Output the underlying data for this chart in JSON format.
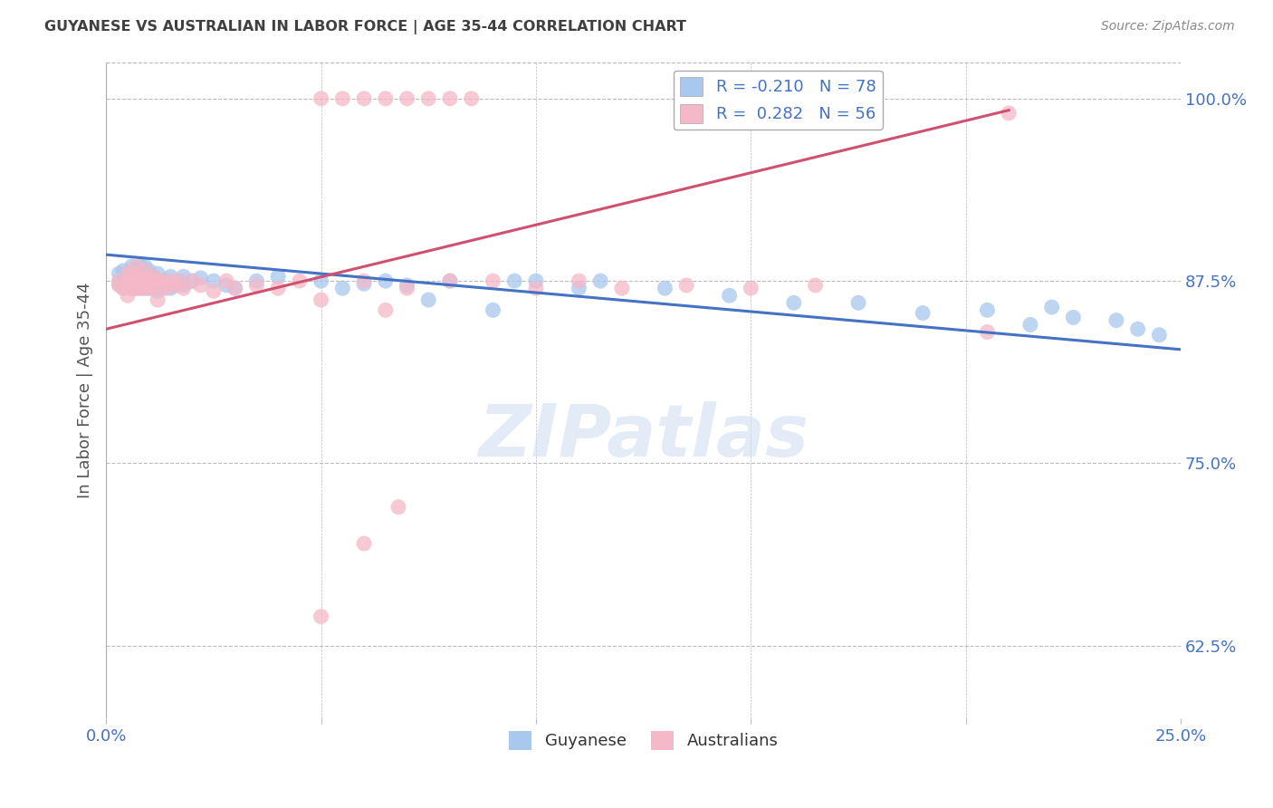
{
  "title": "GUYANESE VS AUSTRALIAN IN LABOR FORCE | AGE 35-44 CORRELATION CHART",
  "source_text": "Source: ZipAtlas.com",
  "ylabel_label": "In Labor Force | Age 35-44",
  "legend_label_guyanese": "Guyanese",
  "legend_label_australians": "Australians",
  "legend_blue_r": "-0.210",
  "legend_blue_n": "78",
  "legend_pink_r": "0.282",
  "legend_pink_n": "56",
  "blue_color": "#A8C8EE",
  "pink_color": "#F5B8C8",
  "blue_line_color": "#4472C4",
  "pink_line_color": "#D05070",
  "watermark_color": "#D0DEF0",
  "grid_color": "#BBBBBB",
  "title_color": "#404040",
  "axis_tick_color": "#4472C4",
  "xmin": 0.0,
  "xmax": 0.25,
  "ymin": 0.575,
  "ymax": 1.025,
  "blue_line_x0": 0.0,
  "blue_line_x1": 0.25,
  "blue_line_y0": 0.893,
  "blue_line_y1": 0.828,
  "pink_line_x0": 0.0,
  "pink_line_x1": 0.21,
  "pink_line_y0": 0.842,
  "pink_line_y1": 0.992,
  "blue_scatter_x": [
    0.003,
    0.003,
    0.004,
    0.004,
    0.004,
    0.005,
    0.005,
    0.005,
    0.006,
    0.006,
    0.006,
    0.006,
    0.006,
    0.007,
    0.007,
    0.007,
    0.007,
    0.007,
    0.008,
    0.008,
    0.008,
    0.008,
    0.008,
    0.009,
    0.009,
    0.009,
    0.009,
    0.01,
    0.01,
    0.01,
    0.01,
    0.01,
    0.011,
    0.011,
    0.011,
    0.012,
    0.012,
    0.012,
    0.013,
    0.013,
    0.014,
    0.015,
    0.015,
    0.016,
    0.017,
    0.018,
    0.018,
    0.02,
    0.022,
    0.025,
    0.028,
    0.03,
    0.035,
    0.04,
    0.05,
    0.055,
    0.06,
    0.065,
    0.07,
    0.075,
    0.08,
    0.09,
    0.095,
    0.1,
    0.11,
    0.115,
    0.13,
    0.145,
    0.16,
    0.175,
    0.19,
    0.205,
    0.215,
    0.22,
    0.225,
    0.235,
    0.24,
    0.245
  ],
  "blue_scatter_y": [
    0.88,
    0.873,
    0.875,
    0.882,
    0.87,
    0.878,
    0.873,
    0.875,
    0.885,
    0.875,
    0.872,
    0.88,
    0.87,
    0.88,
    0.875,
    0.883,
    0.87,
    0.875,
    0.885,
    0.878,
    0.875,
    0.88,
    0.87,
    0.878,
    0.875,
    0.885,
    0.87,
    0.882,
    0.875,
    0.878,
    0.87,
    0.875,
    0.878,
    0.875,
    0.87,
    0.875,
    0.88,
    0.868,
    0.875,
    0.87,
    0.875,
    0.878,
    0.87,
    0.872,
    0.875,
    0.878,
    0.872,
    0.875,
    0.877,
    0.875,
    0.872,
    0.87,
    0.875,
    0.878,
    0.875,
    0.87,
    0.873,
    0.875,
    0.872,
    0.862,
    0.875,
    0.855,
    0.875,
    0.875,
    0.87,
    0.875,
    0.87,
    0.865,
    0.86,
    0.86,
    0.853,
    0.855,
    0.845,
    0.857,
    0.85,
    0.848,
    0.842,
    0.838
  ],
  "pink_scatter_x": [
    0.003,
    0.003,
    0.004,
    0.005,
    0.005,
    0.005,
    0.006,
    0.006,
    0.006,
    0.007,
    0.007,
    0.007,
    0.008,
    0.008,
    0.008,
    0.009,
    0.009,
    0.009,
    0.01,
    0.01,
    0.011,
    0.011,
    0.011,
    0.012,
    0.012,
    0.013,
    0.013,
    0.014,
    0.015,
    0.016,
    0.017,
    0.018,
    0.02,
    0.022,
    0.025,
    0.028,
    0.03,
    0.035,
    0.04,
    0.045,
    0.05,
    0.06,
    0.065,
    0.07,
    0.08,
    0.09,
    0.1,
    0.11,
    0.12,
    0.135,
    0.15,
    0.165,
    0.205,
    0.05,
    0.06,
    0.068
  ],
  "pink_scatter_y": [
    0.872,
    0.875,
    0.87,
    0.875,
    0.88,
    0.865,
    0.875,
    0.87,
    0.88,
    0.885,
    0.875,
    0.87,
    0.878,
    0.87,
    0.875,
    0.882,
    0.875,
    0.87,
    0.875,
    0.87,
    0.878,
    0.875,
    0.87,
    0.875,
    0.862,
    0.872,
    0.875,
    0.87,
    0.875,
    0.872,
    0.875,
    0.87,
    0.875,
    0.872,
    0.868,
    0.875,
    0.87,
    0.872,
    0.87,
    0.875,
    0.862,
    0.875,
    0.855,
    0.87,
    0.875,
    0.875,
    0.87,
    0.875,
    0.87,
    0.872,
    0.87,
    0.872,
    0.84,
    0.645,
    0.695,
    0.72
  ],
  "pink_top_x": [
    0.05,
    0.055,
    0.06,
    0.065,
    0.07,
    0.075,
    0.08,
    0.085,
    0.21
  ],
  "pink_top_y": [
    1.0,
    1.0,
    1.0,
    1.0,
    1.0,
    1.0,
    1.0,
    1.0,
    0.99
  ]
}
